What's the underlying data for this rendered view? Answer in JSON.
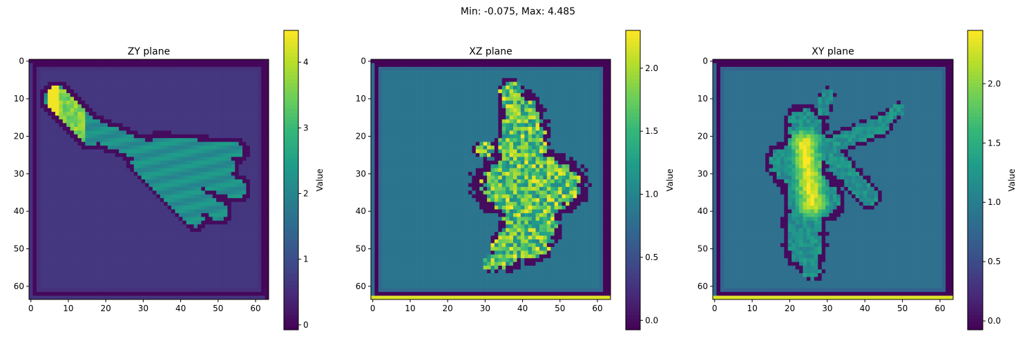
{
  "figure": {
    "suptitle": "Min: -0.075, Max: 4.485"
  },
  "colormap": "viridis",
  "chart_data": [
    {
      "type": "heatmap",
      "title": "ZY plane",
      "grid_size": [
        64,
        64
      ],
      "xlim": [
        -0.5,
        63.5
      ],
      "ylim": [
        63.5,
        -0.5
      ],
      "xticks": [
        0,
        10,
        20,
        30,
        40,
        50,
        60
      ],
      "yticks": [
        0,
        10,
        20,
        30,
        40,
        50,
        60
      ],
      "colorbar": {
        "label": "Value",
        "range": [
          -0.075,
          4.485
        ],
        "ticks": [
          0,
          1,
          2,
          3,
          4
        ]
      },
      "background_value": 0.65,
      "frame_value": 0.0,
      "shape": "hand"
    },
    {
      "type": "heatmap",
      "title": "XZ plane",
      "grid_size": [
        64,
        64
      ],
      "xlim": [
        -0.5,
        63.5
      ],
      "ylim": [
        63.5,
        -0.5
      ],
      "xticks": [
        0,
        10,
        20,
        30,
        40,
        50,
        60
      ],
      "yticks": [
        0,
        10,
        20,
        30,
        40,
        50,
        60
      ],
      "colorbar": {
        "label": "Value",
        "range": [
          -0.075,
          2.3
        ],
        "ticks": [
          0.0,
          0.5,
          1.0,
          1.5,
          2.0
        ]
      },
      "background_value": 0.85,
      "frame_value": -0.05,
      "shape": "blob"
    },
    {
      "type": "heatmap",
      "title": "XY plane",
      "grid_size": [
        64,
        64
      ],
      "xlim": [
        -0.5,
        63.5
      ],
      "ylim": [
        63.5,
        -0.5
      ],
      "xticks": [
        0,
        10,
        20,
        30,
        40,
        50,
        60
      ],
      "yticks": [
        0,
        10,
        20,
        30,
        40,
        50,
        60
      ],
      "colorbar": {
        "label": "Value",
        "range": [
          -0.075,
          2.45
        ],
        "ticks": [
          0.0,
          0.5,
          1.0,
          1.5,
          2.0
        ]
      },
      "background_value": 0.85,
      "frame_value": -0.05,
      "shape": "hand-side"
    }
  ]
}
